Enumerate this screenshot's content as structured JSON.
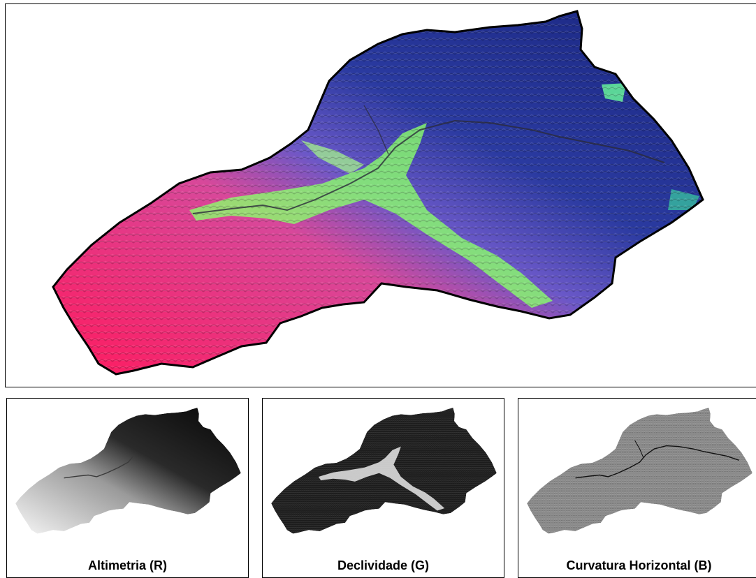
{
  "figure": {
    "composite": {
      "description_colors": {
        "red": "#ff2a6a",
        "green": "#7dff6a",
        "blue": "#1e2a8a"
      }
    },
    "panels": [
      {
        "id": "r",
        "label": "Altimetria (R)"
      },
      {
        "id": "g",
        "label": "Declividade (G)"
      },
      {
        "id": "b",
        "label": "Curvatura Horizontal (B)"
      }
    ]
  }
}
